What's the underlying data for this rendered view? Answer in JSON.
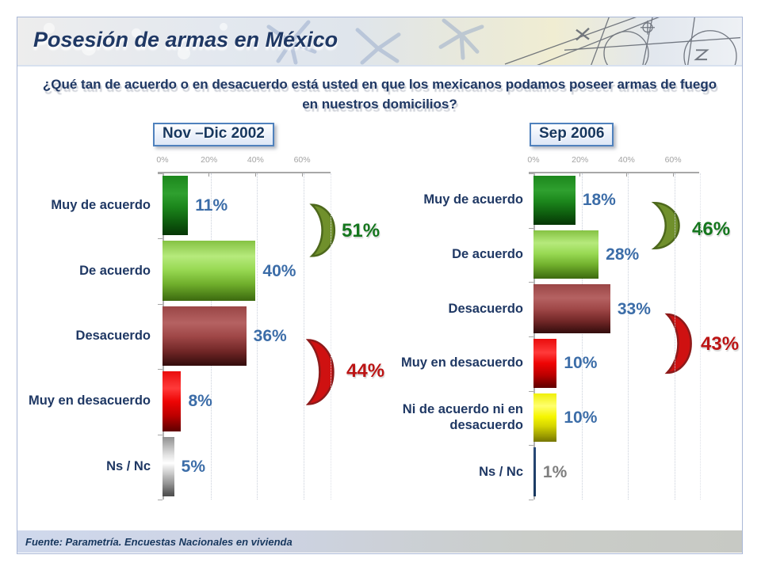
{
  "slide": {
    "title": "Posesión de armas en México",
    "question": "¿Qué tan de acuerdo o en desacuerdo está usted en que los mexicanos podamos poseer armas de fuego en nuestros domicilios?",
    "source": "Fuente: Parametría. Encuestas Nacionales en vivienda"
  },
  "colors": {
    "title_navy": "#1f3864",
    "value_blue": "#3c6da8",
    "muted_gray": "#7f7f7f",
    "agree_green": "#14761d",
    "disagree_red": "#bc1414",
    "axis_gray": "#a6a6a6",
    "date_box_border": "#4f81bd"
  },
  "chart_data": [
    {
      "type": "bar",
      "orientation": "horizontal",
      "title": "Nov –Dic 2002",
      "xlim": [
        0,
        72
      ],
      "grid": true,
      "x_ticks": [
        {
          "label": "0%",
          "value": 0
        },
        {
          "label": "20%",
          "value": 20
        },
        {
          "label": "40%",
          "value": 40
        },
        {
          "label": "60%",
          "value": 60
        }
      ],
      "bars": [
        {
          "category": "Muy de acuerdo",
          "value": 11,
          "label": "11%",
          "style": "dark-green"
        },
        {
          "category": "De acuerdo",
          "value": 40,
          "label": "40%",
          "style": "light-green"
        },
        {
          "category": "Desacuerdo",
          "value": 36,
          "label": "36%",
          "style": "maroon"
        },
        {
          "category": "Muy en desacuerdo",
          "value": 8,
          "label": "8%",
          "style": "bright-red"
        },
        {
          "category": "Ns / Nc",
          "value": 5,
          "label": "5%",
          "style": "silver"
        }
      ],
      "summary": [
        {
          "label": "51%",
          "shape": "green-crescent"
        },
        {
          "label": "44%",
          "shape": "red-crescent"
        }
      ]
    },
    {
      "type": "bar",
      "orientation": "horizontal",
      "title": "Sep 2006",
      "xlim": [
        0,
        72
      ],
      "grid": true,
      "x_ticks": [
        {
          "label": "0%",
          "value": 0
        },
        {
          "label": "20%",
          "value": 20
        },
        {
          "label": "40%",
          "value": 40
        },
        {
          "label": "60%",
          "value": 60
        }
      ],
      "bars": [
        {
          "category": "Muy de acuerdo",
          "value": 18,
          "label": "18%",
          "style": "dark-green"
        },
        {
          "category": "De acuerdo",
          "value": 28,
          "label": "28%",
          "style": "light-green"
        },
        {
          "category": "Desacuerdo",
          "value": 33,
          "label": "33%",
          "style": "maroon"
        },
        {
          "category": "Muy en desacuerdo",
          "value": 10,
          "label": "10%",
          "style": "bright-red"
        },
        {
          "category": "Ni de acuerdo ni en desacuerdo",
          "value": 10,
          "label": "10%",
          "style": "yellow"
        },
        {
          "category": "Ns / Nc",
          "value": 1,
          "label": "1%",
          "style": "navy",
          "muted": true
        }
      ],
      "summary": [
        {
          "label": "46%",
          "shape": "green-crescent"
        },
        {
          "label": "43%",
          "shape": "red-crescent"
        }
      ]
    }
  ]
}
